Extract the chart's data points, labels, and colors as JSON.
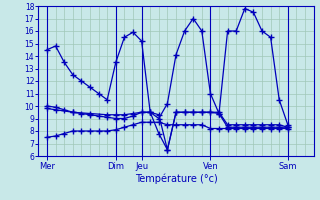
{
  "xlabel": "Température (°c)",
  "background_color": "#c8e8e8",
  "grid_color": "#a0c8b8",
  "line_color": "#0000bb",
  "ylim": [
    6,
    18
  ],
  "yticks": [
    6,
    7,
    8,
    9,
    10,
    11,
    12,
    13,
    14,
    15,
    16,
    17,
    18
  ],
  "xlim": [
    0,
    32
  ],
  "day_labels": [
    "Mer",
    "Dim",
    "Jeu",
    "Ven",
    "Sam"
  ],
  "day_tick_pos": [
    1,
    9,
    12,
    20,
    29
  ],
  "day_vline_pos": [
    1,
    9,
    12,
    20,
    29
  ],
  "series1_x": [
    1,
    2,
    3,
    4,
    5,
    6,
    7,
    8,
    9,
    10,
    11,
    12,
    13,
    14,
    15,
    16,
    17,
    18,
    19,
    20,
    21,
    22,
    23,
    24,
    25,
    26,
    27,
    28,
    29
  ],
  "series1_y": [
    14.5,
    14.8,
    13.5,
    12.5,
    12.0,
    11.5,
    11.0,
    10.5,
    13.5,
    15.5,
    15.9,
    15.2,
    9.5,
    9.0,
    10.2,
    14.1,
    16.0,
    17.0,
    16.0,
    11.0,
    9.4,
    16.0,
    16.0,
    17.8,
    17.5,
    16.0,
    15.5,
    10.5,
    8.5
  ],
  "series2_x": [
    1,
    2,
    4,
    6,
    8,
    9,
    10,
    11,
    12,
    13,
    14,
    15,
    16,
    17,
    18,
    19,
    20,
    21,
    22,
    23,
    24,
    25,
    26,
    27,
    28,
    29
  ],
  "series2_y": [
    9.8,
    9.7,
    9.5,
    9.4,
    9.3,
    9.3,
    9.3,
    9.4,
    9.5,
    9.5,
    7.8,
    6.5,
    9.5,
    9.5,
    9.5,
    9.5,
    9.5,
    9.5,
    8.5,
    8.5,
    8.5,
    8.5,
    8.5,
    8.5,
    8.5,
    8.3
  ],
  "series3_x": [
    1,
    2,
    3,
    4,
    5,
    6,
    7,
    8,
    9,
    10,
    11,
    12,
    13,
    14,
    15,
    16,
    17,
    18,
    19,
    20,
    21,
    22,
    23,
    24,
    25,
    26,
    27,
    28,
    29
  ],
  "series3_y": [
    7.5,
    7.6,
    7.8,
    8.0,
    8.0,
    8.0,
    8.0,
    8.0,
    8.1,
    8.3,
    8.5,
    8.7,
    8.7,
    8.7,
    8.5,
    8.5,
    8.5,
    8.5,
    8.5,
    8.2,
    8.2,
    8.2,
    8.2,
    8.2,
    8.2,
    8.2,
    8.2,
    8.2,
    8.2
  ],
  "series4_x": [
    1,
    2,
    3,
    4,
    5,
    6,
    7,
    8,
    9,
    10,
    11,
    12,
    13,
    14,
    15,
    16,
    17,
    18,
    19,
    20,
    21,
    22,
    23,
    24,
    25,
    26,
    27,
    28,
    29
  ],
  "series4_y": [
    10.0,
    9.9,
    9.7,
    9.5,
    9.4,
    9.3,
    9.2,
    9.1,
    9.0,
    9.0,
    9.2,
    9.5,
    9.5,
    9.3,
    6.5,
    9.5,
    9.5,
    9.5,
    9.5,
    9.5,
    9.4,
    8.3,
    8.3,
    8.3,
    8.3,
    8.3,
    8.3,
    8.3,
    8.3
  ]
}
